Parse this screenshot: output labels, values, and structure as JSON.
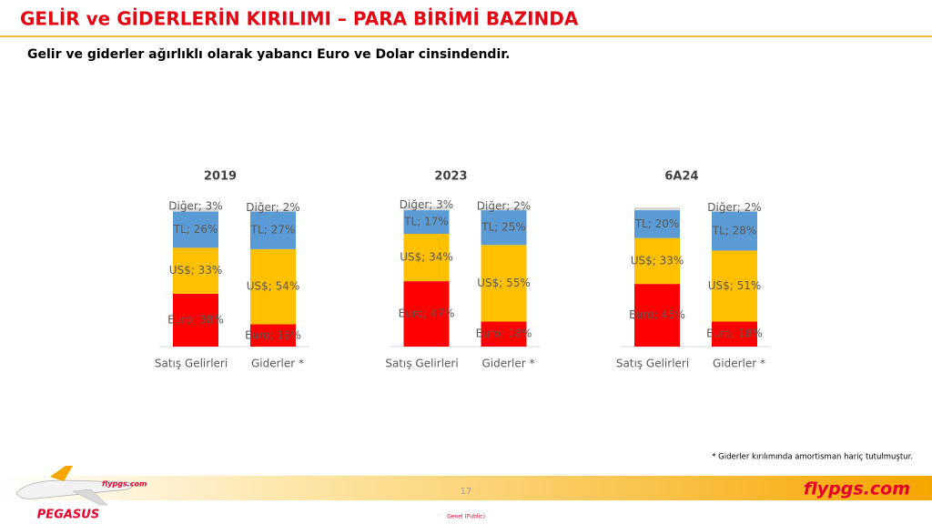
{
  "header": {
    "title": "GELİR ve GİDERLERİN KIRILIMI – PARA BİRİMİ BAZINDA",
    "subtitle": "Gelir ve giderler ağırlıklı olarak yabancı Euro ve Dolar cinsindendir."
  },
  "chart_data": [
    {
      "type": "stacked-bar",
      "title": "2019",
      "categories": [
        "Satış Gelirleri",
        "Giderler *"
      ],
      "ylim": [
        0,
        100
      ],
      "series": [
        {
          "color": "#ff0000",
          "values": [
            38,
            16
          ],
          "value_labels": [
            "Euro; 38%",
            "Euro; 16%"
          ]
        },
        {
          "color": "#ffc000",
          "values": [
            33,
            54
          ],
          "value_labels": [
            "US$; 33%",
            "US$; 54%"
          ]
        },
        {
          "color": "#5b9bd5",
          "values": [
            26,
            27
          ],
          "value_labels": [
            "TL; 26%",
            "TL; 27%"
          ]
        },
        {
          "color": "#d9d9d9",
          "values": [
            3,
            2
          ],
          "value_labels": [
            "Diğer; 3%",
            "Diğer; 2%"
          ]
        }
      ]
    },
    {
      "type": "stacked-bar",
      "title": "2023",
      "categories": [
        "Satış Gelirleri",
        "Giderler *"
      ],
      "ylim": [
        0,
        100
      ],
      "series": [
        {
          "color": "#ff0000",
          "values": [
            47,
            18
          ],
          "value_labels": [
            "Euro; 47%",
            "Euro; 18%"
          ]
        },
        {
          "color": "#ffc000",
          "values": [
            34,
            55
          ],
          "value_labels": [
            "US$; 34%",
            "US$; 55%"
          ]
        },
        {
          "color": "#5b9bd5",
          "values": [
            17,
            25
          ],
          "value_labels": [
            "TL; 17%",
            "TL; 25%"
          ]
        },
        {
          "color": "#d9d9d9",
          "values": [
            3,
            2
          ],
          "value_labels": [
            "Diğer; 3%",
            "Diğer; 2%"
          ]
        }
      ]
    },
    {
      "type": "stacked-bar",
      "title": "6A24",
      "categories": [
        "Satış Gelirleri",
        "Giderler *"
      ],
      "ylim": [
        0,
        100
      ],
      "series": [
        {
          "color": "#ff0000",
          "values": [
            45,
            18
          ],
          "value_labels": [
            "Euro; 45%",
            "Euro; 18%"
          ]
        },
        {
          "color": "#ffc000",
          "values": [
            33,
            51
          ],
          "value_labels": [
            "US$; 33%",
            "US$; 51%"
          ]
        },
        {
          "color": "#5b9bd5",
          "values": [
            20,
            28
          ],
          "value_labels": [
            "TL; 20%",
            "TL; 28%"
          ]
        },
        {
          "color": "#d9d9d9",
          "values": [
            2,
            2
          ],
          "value_labels": [
            null,
            "Diğer; 2%"
          ]
        }
      ]
    }
  ],
  "footnote": "* Giderler kırılımında amortisman hariç tutulmuştur.",
  "footer": {
    "page": "17",
    "classification": "Genel (Public)",
    "website": "flypgs.com",
    "brand": "PEGASUS",
    "livery": "flypgs.com"
  }
}
